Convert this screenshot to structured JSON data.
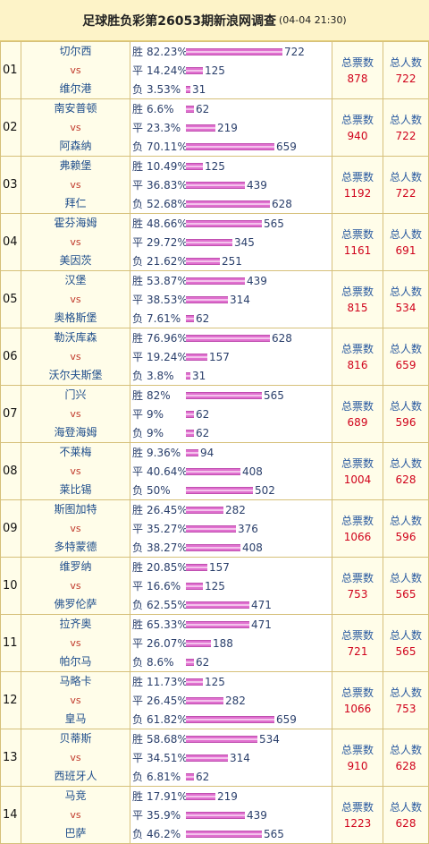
{
  "header": {
    "title": "足球胜负彩第26053期新浪网调查",
    "date": "(04-04 21:30)"
  },
  "labels": {
    "win": "胜",
    "draw": "平",
    "lose": "负",
    "vs": "vs",
    "total_votes": "总票数",
    "total_people": "总人数"
  },
  "matches": [
    {
      "no": "01",
      "home": "切尔西",
      "away": "维尔港",
      "win_pct": "82.23%",
      "win": 722,
      "draw_pct": "14.24%",
      "draw": 125,
      "lose_pct": "3.53%",
      "lose": 31,
      "votes": "878",
      "people": "722"
    },
    {
      "no": "02",
      "home": "南安普顿",
      "away": "阿森纳",
      "win_pct": "6.6%",
      "win": 62,
      "draw_pct": "23.3%",
      "draw": 219,
      "lose_pct": "70.11%",
      "lose": 659,
      "votes": "940",
      "people": "722"
    },
    {
      "no": "03",
      "home": "弗赖堡",
      "away": "拜仁",
      "win_pct": "10.49%",
      "win": 125,
      "draw_pct": "36.83%",
      "draw": 439,
      "lose_pct": "52.68%",
      "lose": 628,
      "votes": "1192",
      "people": "722"
    },
    {
      "no": "04",
      "home": "霍芬海姆",
      "away": "美因茨",
      "win_pct": "48.66%",
      "win": 565,
      "draw_pct": "29.72%",
      "draw": 345,
      "lose_pct": "21.62%",
      "lose": 251,
      "votes": "1161",
      "people": "691"
    },
    {
      "no": "05",
      "home": "汉堡",
      "away": "奥格斯堡",
      "win_pct": "53.87%",
      "win": 439,
      "draw_pct": "38.53%",
      "draw": 314,
      "lose_pct": "7.61%",
      "lose": 62,
      "votes": "815",
      "people": "534"
    },
    {
      "no": "06",
      "home": "勒沃库森",
      "away": "沃尔夫斯堡",
      "win_pct": "76.96%",
      "win": 628,
      "draw_pct": "19.24%",
      "draw": 157,
      "lose_pct": "3.8%",
      "lose": 31,
      "votes": "816",
      "people": "659"
    },
    {
      "no": "07",
      "home": "门兴",
      "away": "海登海姆",
      "win_pct": "82%",
      "win": 565,
      "draw_pct": "9%",
      "draw": 62,
      "lose_pct": "9%",
      "lose": 62,
      "votes": "689",
      "people": "596"
    },
    {
      "no": "08",
      "home": "不莱梅",
      "away": "莱比锡",
      "win_pct": "9.36%",
      "win": 94,
      "draw_pct": "40.64%",
      "draw": 408,
      "lose_pct": "50%",
      "lose": 502,
      "votes": "1004",
      "people": "628"
    },
    {
      "no": "09",
      "home": "斯图加特",
      "away": "多特蒙德",
      "win_pct": "26.45%",
      "win": 282,
      "draw_pct": "35.27%",
      "draw": 376,
      "lose_pct": "38.27%",
      "lose": 408,
      "votes": "1066",
      "people": "596"
    },
    {
      "no": "10",
      "home": "维罗纳",
      "away": "佛罗伦萨",
      "win_pct": "20.85%",
      "win": 157,
      "draw_pct": "16.6%",
      "draw": 125,
      "lose_pct": "62.55%",
      "lose": 471,
      "votes": "753",
      "people": "565"
    },
    {
      "no": "11",
      "home": "拉齐奥",
      "away": "帕尔马",
      "win_pct": "65.33%",
      "win": 471,
      "draw_pct": "26.07%",
      "draw": 188,
      "lose_pct": "8.6%",
      "lose": 62,
      "votes": "721",
      "people": "565"
    },
    {
      "no": "12",
      "home": "马略卡",
      "away": "皇马",
      "win_pct": "11.73%",
      "win": 125,
      "draw_pct": "26.45%",
      "draw": 282,
      "lose_pct": "61.82%",
      "lose": 659,
      "votes": "1066",
      "people": "753"
    },
    {
      "no": "13",
      "home": "贝蒂斯",
      "away": "西班牙人",
      "win_pct": "58.68%",
      "win": 534,
      "draw_pct": "34.51%",
      "draw": 314,
      "lose_pct": "6.81%",
      "lose": 62,
      "votes": "910",
      "people": "628"
    },
    {
      "no": "14",
      "home": "马竞",
      "away": "巴萨",
      "win_pct": "17.91%",
      "win": 219,
      "draw_pct": "35.9%",
      "draw": 439,
      "lose_pct": "46.2%",
      "lose": 565,
      "votes": "1223",
      "people": "628"
    }
  ]
}
